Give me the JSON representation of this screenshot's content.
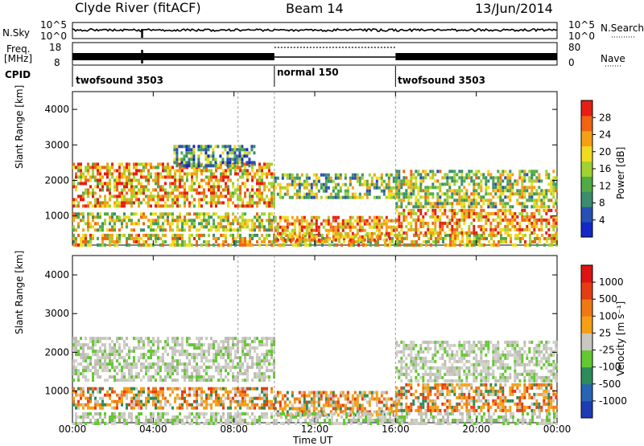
{
  "header": {
    "station": "Clyde River (fitACF)",
    "beam": "Beam 14",
    "date": "13/Jun/2014"
  },
  "top_panels": {
    "left_labels": {
      "nsky": "N.Sky",
      "freq": "Freq.",
      "freq_unit": "[MHz]",
      "cpid": "CPID"
    },
    "right_labels": {
      "nsearch": "N.Search",
      "nave": "Nave"
    },
    "noise_ticks_left": [
      "10^5",
      "10^0"
    ],
    "noise_ticks_right": [
      "10^5",
      "10^0"
    ],
    "freq_ticks": [
      "18",
      "8"
    ],
    "nave_ticks": [
      "80",
      "0"
    ],
    "cpid_segments": [
      {
        "label": "twofsound 3503",
        "start_hr": 0,
        "end_hr": 10
      },
      {
        "label": "normal 150",
        "start_hr": 10,
        "end_hr": 16
      },
      {
        "label": "twofsound 3503",
        "start_hr": 16,
        "end_hr": 24
      }
    ]
  },
  "chart_data": [
    {
      "type": "heatmap",
      "variable": "power",
      "xlabel": "Time UT",
      "ylabel": "Slant Range [km]",
      "x_range_hr": [
        0,
        24
      ],
      "ylim": [
        180,
        4500
      ],
      "yticks": [
        1000,
        2000,
        3000,
        4000
      ],
      "colorbar": {
        "label": "Power [dB]",
        "ticks": [
          4,
          8,
          12,
          16,
          20,
          24,
          28
        ],
        "range": [
          0,
          32
        ],
        "colors": [
          "#1428c8",
          "#2850b4",
          "#3c8c6e",
          "#50aa46",
          "#a0d232",
          "#f0dc1e",
          "#f5a014",
          "#f06414",
          "#e61e14"
        ]
      },
      "echo_bands": [
        {
          "t0": 0,
          "t1": 10,
          "r0": 1300,
          "r1": 2500,
          "level": 0.7
        },
        {
          "t0": 0,
          "t1": 10,
          "r0": 600,
          "r1": 1100,
          "level": 0.55
        },
        {
          "t0": 0,
          "t1": 24,
          "r0": 200,
          "r1": 500,
          "level": 0.6
        },
        {
          "t0": 10,
          "t1": 16,
          "r0": 1500,
          "r1": 2200,
          "level": 0.45
        },
        {
          "t0": 10,
          "t1": 16,
          "r0": 350,
          "r1": 1000,
          "level": 0.75
        },
        {
          "t0": 16,
          "t1": 24,
          "r0": 500,
          "r1": 1200,
          "level": 0.75
        },
        {
          "t0": 16,
          "t1": 24,
          "r0": 1300,
          "r1": 2300,
          "level": 0.5
        },
        {
          "t0": 5,
          "t1": 9,
          "r0": 2400,
          "r1": 3000,
          "level": 0.35
        }
      ]
    },
    {
      "type": "heatmap",
      "variable": "velocity",
      "xlabel": "Time UT",
      "ylabel": "Slant Range [km]",
      "x_range_hr": [
        0,
        24
      ],
      "ylim": [
        180,
        4500
      ],
      "yticks": [
        1000,
        2000,
        3000,
        4000
      ],
      "xticks": [
        "00:00",
        "04:00",
        "08:00",
        "12:00",
        "16:00",
        "20:00",
        "00:00"
      ],
      "colorbar": {
        "label": "Velocity [m s⁻¹]",
        "ticks": [
          "1000",
          "500",
          "100",
          "25",
          "-25",
          "-100",
          "-500",
          "-1000"
        ],
        "colors": [
          "#1e3cb4",
          "#2864b4",
          "#2d8c5a",
          "#64c832",
          "#c8c8c0",
          "#f5a014",
          "#f07814",
          "#e63c14",
          "#dc1414"
        ]
      },
      "echo_bands": [
        {
          "t0": 0,
          "t1": 10,
          "r0": 1300,
          "r1": 2400,
          "vel": "gray"
        },
        {
          "t0": 0,
          "t1": 10,
          "r0": 600,
          "r1": 1100,
          "vel": "orange"
        },
        {
          "t0": 10,
          "t1": 16,
          "r0": 350,
          "r1": 1000,
          "vel": "orange"
        },
        {
          "t0": 16,
          "t1": 24,
          "r0": 500,
          "r1": 1200,
          "vel": "orange"
        },
        {
          "t0": 16,
          "t1": 24,
          "r0": 1300,
          "r1": 2300,
          "vel": "gray"
        },
        {
          "t0": 0,
          "t1": 24,
          "r0": 200,
          "r1": 450,
          "vel": "gray"
        }
      ]
    }
  ]
}
